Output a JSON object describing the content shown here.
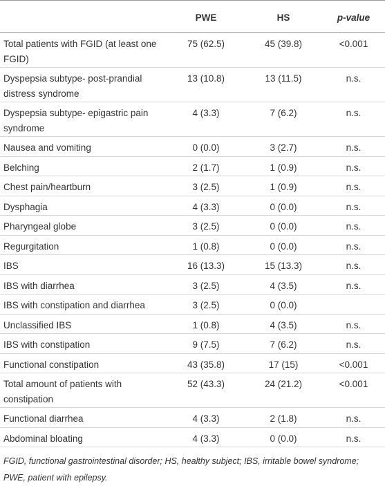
{
  "table": {
    "columns": [
      "PWE",
      "HS",
      "p-value"
    ],
    "rows": [
      [
        "Total patients with FGID (at least one FGID)",
        "75 (62.5)",
        "45 (39.8)",
        "<0.001"
      ],
      [
        "Dyspepsia subtype- post-prandial distress syndrome",
        "13 (10.8)",
        "13 (11.5)",
        "n.s."
      ],
      [
        "Dyspepsia subtype- epigastric pain syndrome",
        "4 (3.3)",
        "7 (6.2)",
        "n.s."
      ],
      [
        "Nausea and vomiting",
        "0 (0.0)",
        "3 (2.7)",
        "n.s."
      ],
      [
        "Belching",
        "2 (1.7)",
        "1 (0.9)",
        "n.s."
      ],
      [
        "Chest pain/heartburn",
        "3 (2.5)",
        "1 (0.9)",
        "n.s."
      ],
      [
        "Dysphagia",
        "4 (3.3)",
        "0 (0.0)",
        "n.s."
      ],
      [
        "Pharyngeal globe",
        "3 (2.5)",
        "0 (0.0)",
        "n.s."
      ],
      [
        "Regurgitation",
        "1 (0.8)",
        "0 (0.0)",
        "n.s."
      ],
      [
        "IBS",
        "16 (13.3)",
        "15 (13.3)",
        "n.s."
      ],
      [
        "IBS with diarrhea",
        "3 (2.5)",
        "4 (3.5)",
        "n.s."
      ],
      [
        "IBS with constipation and diarrhea",
        "3 (2.5)",
        "0 (0.0)"
      ],
      [
        "Unclassified IBS",
        "1 (0.8)",
        "4 (3.5)",
        "n.s."
      ],
      [
        "IBS with constipation",
        "9 (7.5)",
        "7 (6.2)",
        "n.s."
      ],
      [
        "Functional constipation",
        "43 (35.8)",
        "17 (15)",
        "<0.001"
      ],
      [
        "Total amount of patients with constipation",
        "52 (43.3)",
        "24 (21.2)",
        "<0.001"
      ],
      [
        "Functional diarrhea",
        "4 (3.3)",
        "2 (1.8)",
        "n.s."
      ],
      [
        "Abdominal bloating",
        "4 (3.3)",
        "0 (0.0)",
        "n.s."
      ]
    ],
    "footnote": "FGID, functional gastrointestinal disorder; HS, healthy subject; IBS, irritable bowel syndrome; PWE, patient with epilepsy."
  }
}
